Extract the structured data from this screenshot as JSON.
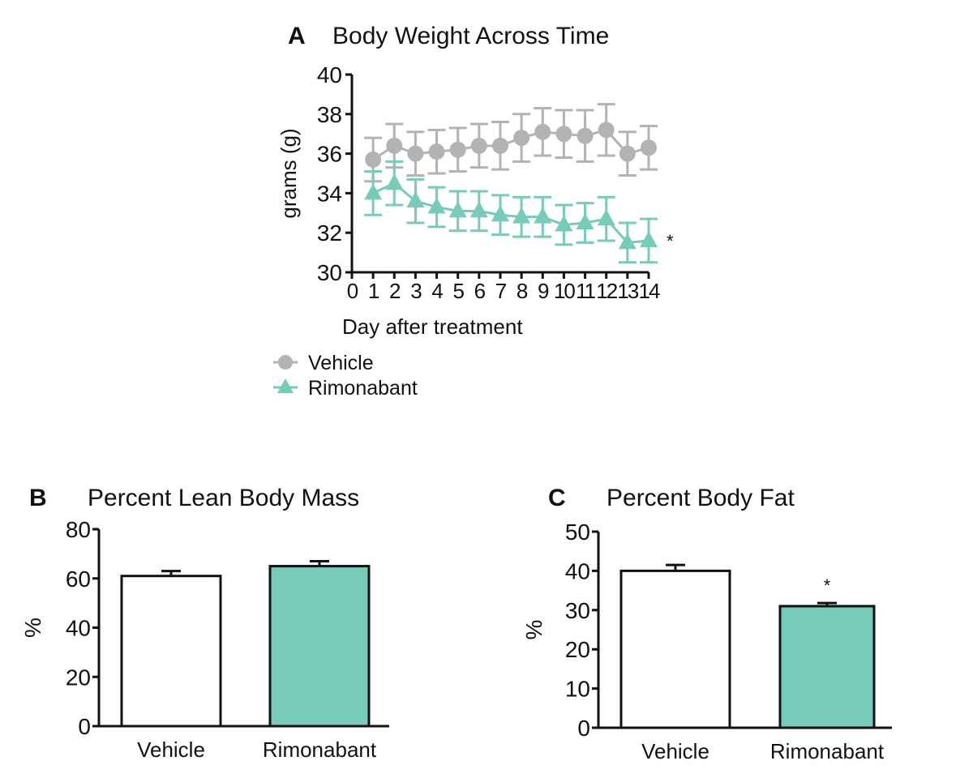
{
  "colors": {
    "vehicle": "#b3b3b3",
    "rimonabant": "#76cbb9",
    "axis": "#111111",
    "vehicle_bar": "#ffffff"
  },
  "chart_data": [
    {
      "panel": "A",
      "type": "line",
      "title": "Body Weight Across Time",
      "xlabel": "Day after treatment",
      "ylabel": "grams (g)",
      "xlim": [
        0,
        14
      ],
      "ylim": [
        30,
        40
      ],
      "xticks": [
        "0",
        "1",
        "2",
        "3",
        "4",
        "5",
        "6",
        "7",
        "8",
        "9",
        "10",
        "11",
        "12",
        "13",
        "14"
      ],
      "yticks": [
        "30",
        "32",
        "34",
        "36",
        "38",
        "40"
      ],
      "x": [
        1,
        2,
        3,
        4,
        5,
        6,
        7,
        8,
        9,
        10,
        11,
        12,
        13,
        14
      ],
      "legend_placement": "bottom-left",
      "annotation": "*",
      "series": [
        {
          "name": "Vehicle",
          "marker": "circle",
          "values": [
            35.7,
            36.4,
            36.0,
            36.1,
            36.2,
            36.4,
            36.4,
            36.8,
            37.1,
            37.0,
            36.9,
            37.2,
            36.0,
            36.3
          ],
          "error": [
            1.1,
            1.1,
            1.1,
            1.1,
            1.1,
            1.1,
            1.2,
            1.2,
            1.2,
            1.2,
            1.3,
            1.3,
            1.1,
            1.1
          ]
        },
        {
          "name": "Rimonabant",
          "marker": "triangle",
          "values": [
            34.0,
            34.5,
            33.6,
            33.3,
            33.1,
            33.1,
            32.9,
            32.8,
            32.8,
            32.4,
            32.5,
            32.7,
            31.5,
            31.6
          ],
          "error": [
            1.1,
            1.1,
            1.1,
            1.0,
            1.0,
            1.0,
            1.0,
            1.0,
            1.0,
            1.0,
            1.0,
            1.1,
            1.0,
            1.1
          ]
        }
      ]
    },
    {
      "panel": "B",
      "type": "bar",
      "title": "Percent Lean Body Mass",
      "ylabel": "%",
      "ylim": [
        0,
        80
      ],
      "yticks": [
        "0",
        "20",
        "40",
        "60",
        "80"
      ],
      "categories": [
        "Vehicle",
        "Rimonabant"
      ],
      "values": [
        61,
        65
      ],
      "error": [
        2,
        2
      ]
    },
    {
      "panel": "C",
      "type": "bar",
      "title": "Percent Body Fat",
      "ylabel": "%",
      "ylim": [
        0,
        50
      ],
      "yticks": [
        "0",
        "10",
        "20",
        "30",
        "40",
        "50"
      ],
      "categories": [
        "Vehicle",
        "Rimonabant"
      ],
      "values": [
        40,
        31
      ],
      "error": [
        1.5,
        0.8
      ],
      "annotation": "*"
    }
  ]
}
